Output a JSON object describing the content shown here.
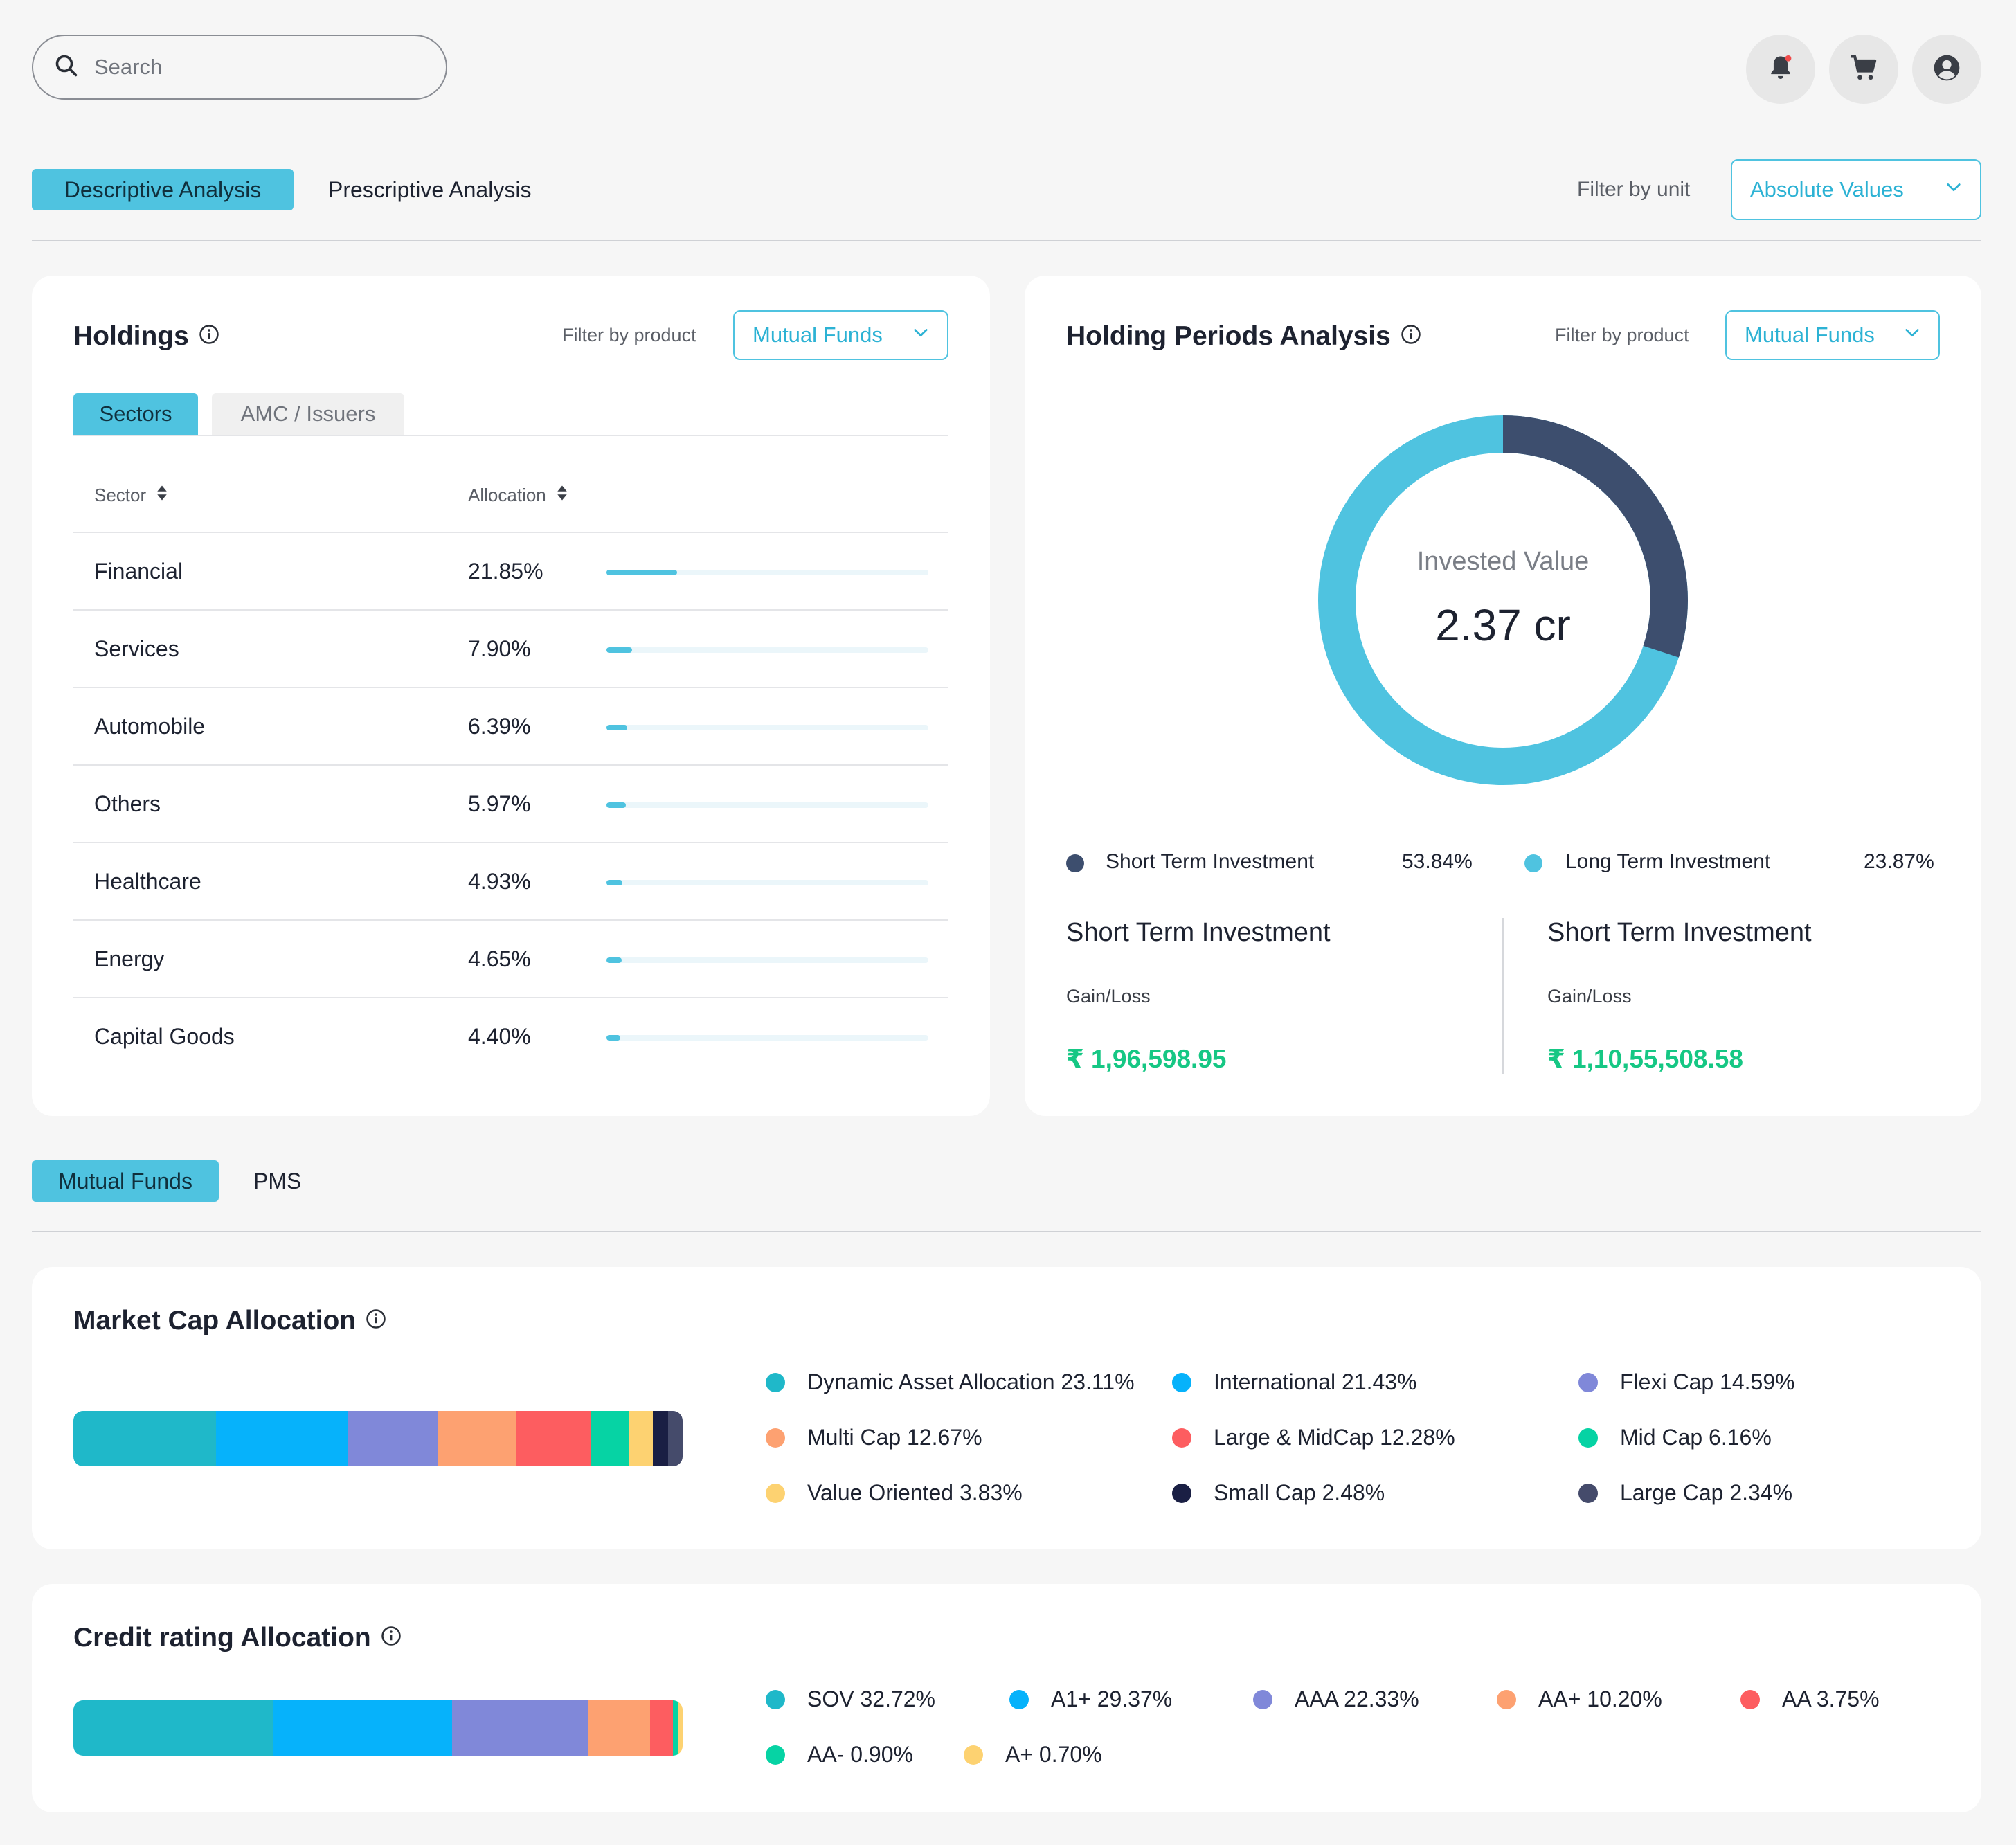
{
  "header": {
    "search_placeholder": "Search",
    "icons": [
      "bell-icon",
      "cart-icon",
      "user-account-icon"
    ]
  },
  "analysis_tabs": {
    "active": "Descriptive Analysis",
    "inactive": "Prescriptive Analysis",
    "filter_label": "Filter by unit",
    "filter_value": "Absolute Values"
  },
  "holdings": {
    "title": "Holdings",
    "filter_label": "Filter by product",
    "filter_value": "Mutual Funds",
    "tabs": [
      "Sectors",
      "AMC / Issuers"
    ],
    "columns": [
      "Sector",
      "Allocation"
    ],
    "rows": [
      {
        "name": "Financial",
        "allocation": "21.85%",
        "fraction": 0.2185
      },
      {
        "name": "Services",
        "allocation": "7.90%",
        "fraction": 0.079
      },
      {
        "name": "Automobile",
        "allocation": "6.39%",
        "fraction": 0.0639
      },
      {
        "name": "Others",
        "allocation": "5.97%",
        "fraction": 0.0597
      },
      {
        "name": "Healthcare",
        "allocation": "4.93%",
        "fraction": 0.0493
      },
      {
        "name": "Energy",
        "allocation": "4.65%",
        "fraction": 0.0465
      },
      {
        "name": "Capital Goods",
        "allocation": "4.40%",
        "fraction": 0.044
      }
    ]
  },
  "holding_periods": {
    "title": "Holding Periods Analysis",
    "filter_label": "Filter by product",
    "filter_value": "Mutual Funds",
    "center_label": "Invested Value",
    "center_value": "2.37 cr",
    "legend": [
      {
        "name": "Short Term Investment",
        "value": "53.84%",
        "color": "#3d4e6e"
      },
      {
        "name": "Long Term Investment",
        "value": "23.87%",
        "color": "#4fc3e0"
      }
    ],
    "donut_fraction_dark": 0.3,
    "panels": [
      {
        "title": "Short Term Investment",
        "label": "Gain/Loss",
        "value": "₹ 1,96,598.95"
      },
      {
        "title": "Short Term Investment",
        "label": "Gain/Loss",
        "value": "₹ 1,10,55,508.58"
      }
    ]
  },
  "product_tabs": {
    "active": "Mutual Funds",
    "inactive": "PMS"
  },
  "market_cap": {
    "title": "Market Cap Allocation",
    "items": [
      {
        "label": "Dynamic Asset Allocation 23.11%",
        "value": 23.11,
        "color": "#1fb8c9"
      },
      {
        "label": "International 21.43%",
        "value": 21.43,
        "color": "#06b2fb"
      },
      {
        "label": "Flexi Cap 14.59%",
        "value": 14.59,
        "color": "#8088d9"
      },
      {
        "label": "Multi Cap 12.67%",
        "value": 12.67,
        "color": "#fda171"
      },
      {
        "label": "Large & MidCap 12.28%",
        "value": 12.28,
        "color": "#fd5d60"
      },
      {
        "label": "Mid Cap 6.16%",
        "value": 6.16,
        "color": "#06d3a4"
      },
      {
        "label": "Value Oriented 3.83%",
        "value": 3.83,
        "color": "#fdd271"
      },
      {
        "label": "Small Cap 2.48%",
        "value": 2.48,
        "color": "#1a1f44"
      },
      {
        "label": "Large Cap 2.34%",
        "value": 2.34,
        "color": "#454b6b"
      }
    ]
  },
  "credit_rating": {
    "title": "Credit rating Allocation",
    "items": [
      {
        "label": "SOV 32.72%",
        "value": 32.72,
        "color": "#1fb8c9"
      },
      {
        "label": "A1+ 29.37%",
        "value": 29.37,
        "color": "#06b2fb"
      },
      {
        "label": "AAA 22.33%",
        "value": 22.33,
        "color": "#8088d9"
      },
      {
        "label": "AA+ 10.20%",
        "value": 10.2,
        "color": "#fda171"
      },
      {
        "label": "AA 3.75%",
        "value": 3.75,
        "color": "#fd5d60"
      },
      {
        "label": "AA- 0.90%",
        "value": 0.9,
        "color": "#06d3a4"
      },
      {
        "label": "A+ 0.70%",
        "value": 0.7,
        "color": "#fdd271"
      }
    ]
  }
}
